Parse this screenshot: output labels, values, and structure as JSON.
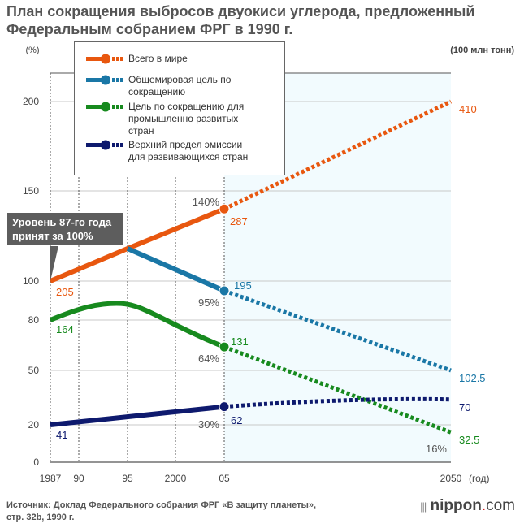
{
  "title_line1": "План сокращения выбросов двуокиси углерода, предложенный",
  "title_line2": "Федеральным собранием ФРГ в 1990 г.",
  "source_line1": "Источник: Доклад Федерального собрания ФРГ «В защиту планеты»,",
  "source_line2": "стр. 32b, 1990 г.",
  "logo": {
    "bars": "|||",
    "name": "nippon",
    "dot": ".",
    "tld": "com"
  },
  "callout": {
    "line1": "Уровень 87-го года",
    "line2": "принят за 100%"
  },
  "chart_data": {
    "type": "line",
    "title": "План сокращения выбросов двуокиси углерода, предложенный Федеральным собранием ФРГ в 1990 г.",
    "xlabel": "(год)",
    "ylabel_left": "(%)",
    "ylabel_right": "(100 млн тонн)",
    "x_ticks": [
      "1987",
      "90",
      "95",
      "2000",
      "05",
      "2050"
    ],
    "y_ticks": [
      "0",
      "20",
      "50",
      "80",
      "100",
      "150",
      "200"
    ],
    "y_tick_values": [
      0,
      20,
      50,
      80,
      100,
      150,
      200
    ],
    "projection_shaded_from": 2005,
    "legend_placement": "top-left",
    "series": [
      {
        "name": "Всего в мире",
        "color": "#e8570f",
        "points": [
          [
            1987,
            100
          ],
          [
            1995,
            118
          ],
          [
            2005,
            140
          ],
          [
            2050,
            200
          ]
        ],
        "labels": {
          "start": "205",
          "mid": "287",
          "end": "410",
          "mid_pct": "140%"
        }
      },
      {
        "name": "Общемировая цель по сокращению",
        "color": "#1a77a6",
        "points": [
          [
            1995,
            118
          ],
          [
            2005,
            95
          ],
          [
            2050,
            50
          ]
        ],
        "labels": {
          "mid": "195",
          "end": "102.5",
          "mid_pct": "95%"
        }
      },
      {
        "name": "Цель по сокращению для промышленно развитых стран",
        "color": "#178a1e",
        "points": [
          [
            1987,
            80
          ],
          [
            1993,
            88
          ],
          [
            1995,
            88
          ],
          [
            2005,
            64
          ],
          [
            2050,
            16
          ]
        ],
        "labels": {
          "start": "164",
          "mid": "131",
          "end": "32.5",
          "mid_pct": "64%",
          "end_pct": "16%"
        }
      },
      {
        "name": "Верхний предел эмиссии для развивающихся стран",
        "color": "#0e1a6e",
        "points": [
          [
            1987,
            20
          ],
          [
            2005,
            30
          ],
          [
            2030,
            34
          ],
          [
            2050,
            34
          ]
        ],
        "labels": {
          "start": "41",
          "mid": "62",
          "end": "70",
          "mid_pct": "30%"
        }
      }
    ]
  },
  "legend": [
    {
      "line1": "Всего в мире",
      "line2": "",
      "line3": ""
    },
    {
      "line1": "Общемировая цель по",
      "line2": "сокращению",
      "line3": ""
    },
    {
      "line1": "Цель по сокращению для",
      "line2": "промышленно развитых",
      "line3": "стран"
    },
    {
      "line1": "Верхний предел эмиссии",
      "line2": "для развивающихся стран",
      "line3": ""
    }
  ]
}
